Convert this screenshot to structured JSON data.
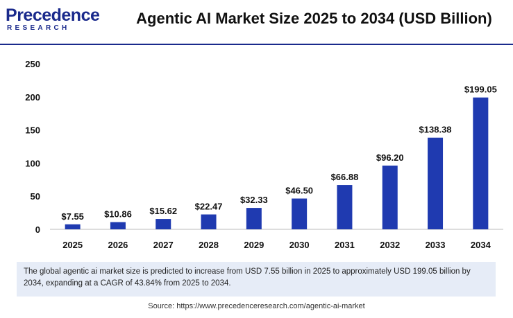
{
  "header": {
    "logo_top_p": "P",
    "logo_top_rest": "recedence",
    "logo_bottom": "RESEARCH",
    "title": "Agentic AI Market Size 2025 to 2034 (USD Billion)"
  },
  "chart_data": {
    "type": "bar",
    "title": "Agentic AI Market Size 2025 to 2034 (USD Billion)",
    "xlabel": "",
    "ylabel": "",
    "categories": [
      "2025",
      "2026",
      "2027",
      "2028",
      "2029",
      "2030",
      "2031",
      "2032",
      "2033",
      "2034"
    ],
    "values": [
      7.55,
      10.86,
      15.62,
      22.47,
      32.33,
      46.5,
      66.88,
      96.2,
      138.38,
      199.05
    ],
    "data_labels": [
      "$7.55",
      "$10.86",
      "$15.62",
      "$22.47",
      "$32.33",
      "$46.50",
      "$66.88",
      "$96.20",
      "$138.38",
      "$199.05"
    ],
    "ylim": [
      0,
      250
    ],
    "yticks": [
      0,
      50,
      100,
      150,
      200,
      250
    ],
    "grid": false,
    "bar_color": "#1f3ab0"
  },
  "caption": "The global agentic ai market size is predicted to increase from USD 7.55 billion in 2025 to approximately USD 199.05 billion by 2034, expanding at a CAGR of 43.84% from 2025 to 2034.",
  "source": "Source: https://www.precedenceresearch.com/agentic-ai-market"
}
